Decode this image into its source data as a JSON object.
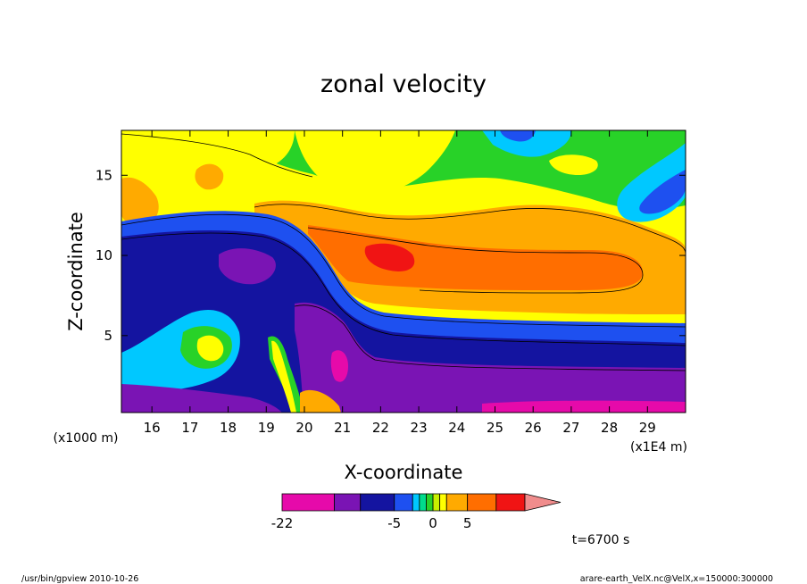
{
  "chart_data": {
    "type": "heatmap",
    "title": "zonal velocity",
    "xlabel": "X-coordinate",
    "ylabel": "Z-coordinate",
    "x_unit": "(x1E4 m)",
    "y_unit": "(x1000 m)",
    "xlim": [
      15.2,
      30.0
    ],
    "ylim": [
      0.2,
      17.8
    ],
    "x_ticks": [
      16,
      17,
      18,
      19,
      20,
      21,
      22,
      23,
      24,
      25,
      26,
      27,
      28,
      29
    ],
    "y_ticks": [
      5,
      10,
      15
    ],
    "time_label": "t=6700 s",
    "colorbar": {
      "levels": [
        -22,
        -15,
        -10,
        -5,
        -3,
        -2,
        -1,
        0,
        1,
        2,
        5,
        10,
        15
      ],
      "tick_labels": [
        {
          "value": -22,
          "label": "-22"
        },
        {
          "value": -5,
          "label": "-5"
        },
        {
          "value": 0,
          "label": "0"
        },
        {
          "value": 5,
          "label": "5"
        }
      ],
      "colors": [
        "#e60aaa",
        "#7a14b4",
        "#1414a0",
        "#1e50f0",
        "#00c8ff",
        "#00dc8c",
        "#28d228",
        "#c8f000",
        "#ffff00",
        "#ffaa00",
        "#ff6e00",
        "#f01414",
        "#f08c8c"
      ]
    },
    "bands": [
      {
        "name": "bottom-magenta",
        "color": "#e60aaa"
      },
      {
        "name": "purple",
        "color": "#7a14b4"
      },
      {
        "name": "navy",
        "color": "#1414a0"
      },
      {
        "name": "blue",
        "color": "#1e50f0"
      },
      {
        "name": "cyan",
        "color": "#00c8ff"
      },
      {
        "name": "green",
        "color": "#28d228"
      },
      {
        "name": "yellow",
        "color": "#ffff00"
      },
      {
        "name": "orange",
        "color": "#ffaa00"
      },
      {
        "name": "dark-orange",
        "color": "#ff6e00"
      },
      {
        "name": "red",
        "color": "#f01414"
      }
    ]
  },
  "footer": {
    "left": "/usr/bin/gpview  2010-10-26",
    "right": "arare-earth_VelX.nc@VelX,x=150000:300000"
  }
}
